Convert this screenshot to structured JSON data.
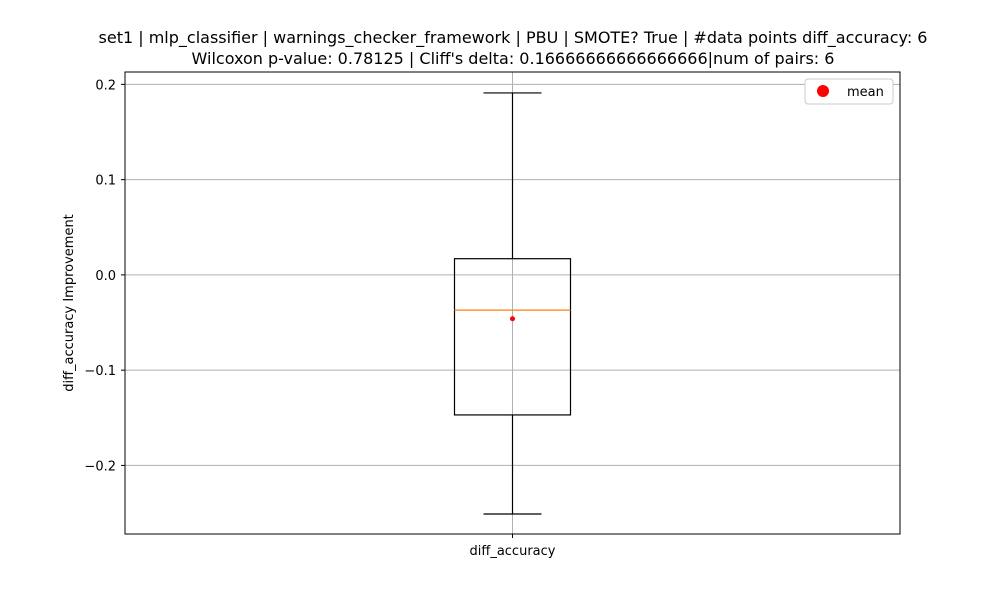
{
  "chart_data": {
    "type": "box",
    "title_line1": "set1 | mlp_classifier | warnings_checker_framework | PBU | SMOTE? True | #data points diff_accuracy: 6",
    "title_line2": "Wilcoxon p-value: 0.78125 | Cliff's delta: 0.16666666666666666|num of pairs: 6",
    "xlabel": "",
    "ylabel": "diff_accuracy Improvement",
    "categories": [
      "diff_accuracy"
    ],
    "ylim": [
      -0.272,
      0.213
    ],
    "yticks": [
      -0.2,
      -0.1,
      0.0,
      0.1,
      0.2
    ],
    "ytick_labels": [
      "−0.2",
      "−0.1",
      "0.0",
      "0.1",
      "0.2"
    ],
    "grid": true,
    "legend": {
      "placement": "top-right",
      "entries": [
        {
          "label": "mean",
          "color": "#ff0000",
          "marker": "circle"
        }
      ]
    },
    "boxes": [
      {
        "category": "diff_accuracy",
        "whisker_low": -0.251,
        "q1": -0.147,
        "median": -0.037,
        "q3": 0.017,
        "whisker_high": 0.191,
        "mean": -0.046
      }
    ],
    "colors": {
      "box": "#000000",
      "median": "#ff7f0e",
      "mean": "#ff0000",
      "grid": "#b0b0b0"
    }
  }
}
